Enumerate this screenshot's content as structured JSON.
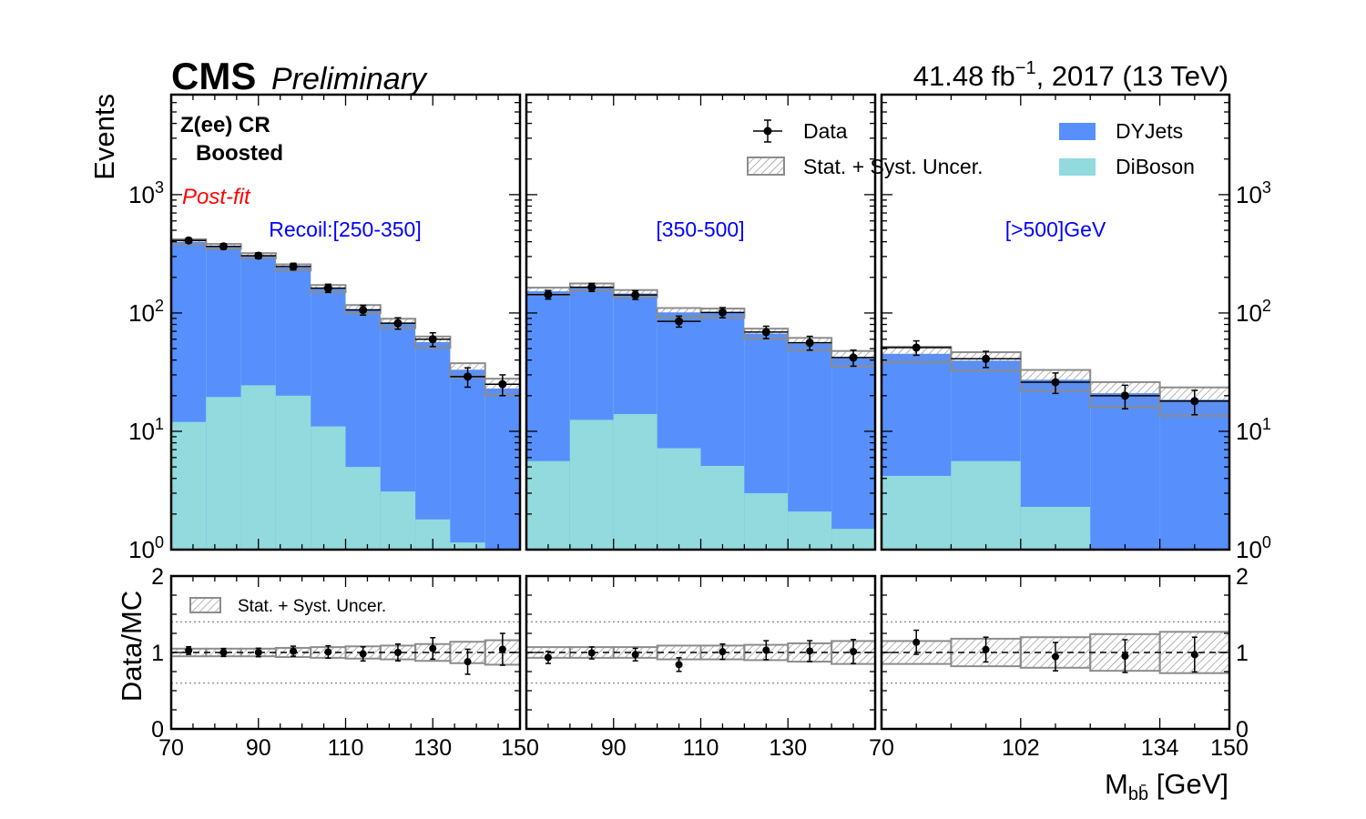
{
  "header": {
    "experiment": "CMS",
    "status": "Preliminary",
    "lumi_main": "41.48 fb",
    "lumi_exp": "−1",
    "lumi_rest": ", 2017 (13 TeV)"
  },
  "region": {
    "line1": "Z(ee) CR",
    "line2": "Boosted",
    "fit": "Post-fit"
  },
  "bins": [
    "Recoil:[250-350]",
    "[350-500]",
    "[>500]GeV"
  ],
  "legend": {
    "data": "Data",
    "uncertainty": "Stat. + Syst. Uncer.",
    "dyjets": "DYJets",
    "diboson": "DiBoson",
    "ratio_uncertainty": "Stat. + Syst. Uncer."
  },
  "axes": {
    "ylabel_top": "Events",
    "ylabel_ratio": "Data/MC",
    "xlabel_main": "M",
    "xlabel_sub": "bb̄",
    "xlabel_unit": " [GeV]"
  },
  "colors": {
    "dyjets": "#5790fc",
    "diboson": "#92dadd",
    "uncertainty_edge": "#8c8c8c",
    "data": "#000000",
    "bin_label": "#0000ff",
    "postfit": "#ff0000"
  },
  "chart_data": {
    "type": "bar",
    "stacked": true,
    "y_scale": "log",
    "ylim": [
      1,
      7000
    ],
    "ratio_ylim": [
      0,
      2
    ],
    "y_ticks": [
      "10^0",
      "10^1",
      "10^2",
      "10^3"
    ],
    "ratio_ticks": [
      "0",
      "1",
      "2"
    ],
    "panels": [
      {
        "label": "Recoil:[250-350]",
        "xlim": [
          70,
          150
        ],
        "x_tick_labels": [
          "70",
          "90",
          "110",
          "130",
          "150"
        ],
        "edges": [
          70,
          78,
          86,
          94,
          102,
          110,
          118,
          126,
          134,
          142,
          150
        ],
        "dyjets": [
          388,
          345,
          281,
          223,
          150,
          103,
          79,
          55,
          32,
          23
        ],
        "diboson": [
          12,
          19.5,
          24.5,
          20,
          11,
          5,
          3.1,
          1.8,
          1.15,
          0
        ],
        "mc_total": [
          400,
          365,
          305,
          243,
          161,
          108,
          82,
          57,
          33,
          24
        ],
        "mc_unc": [
          0.05,
          0.05,
          0.05,
          0.06,
          0.07,
          0.08,
          0.09,
          0.11,
          0.14,
          0.16
        ],
        "data": [
          410,
          365,
          305,
          247,
          162,
          106,
          82,
          60,
          29,
          25
        ],
        "data_err": [
          20,
          19,
          17,
          16,
          13,
          10,
          9,
          8,
          5.4,
          5
        ]
      },
      {
        "label": "[350-500]",
        "xlim": [
          70,
          150
        ],
        "x_tick_labels": [
          "90",
          "110",
          "130"
        ],
        "edges": [
          70,
          80,
          90,
          100,
          110,
          120,
          130,
          140,
          150
        ],
        "dyjets": [
          147,
          153,
          132,
          94,
          95,
          64,
          53,
          40
        ],
        "diboson": [
          5.6,
          12.5,
          14,
          7.2,
          5.1,
          3,
          2.1,
          1.5
        ],
        "mc_total": [
          153,
          166,
          146,
          101,
          100,
          67,
          55,
          41.5
        ],
        "mc_unc": [
          0.07,
          0.07,
          0.07,
          0.09,
          0.09,
          0.1,
          0.12,
          0.15
        ],
        "data": [
          143,
          165,
          142,
          85,
          101,
          69,
          56,
          42
        ],
        "data_err": [
          12,
          13,
          12,
          9,
          10,
          8.3,
          7.5,
          6.5
        ]
      },
      {
        "label": "[>500]GeV",
        "xlim": [
          70,
          150
        ],
        "x_tick_labels": [
          "70",
          "102",
          "134",
          "150"
        ],
        "edges": [
          70,
          86,
          102,
          118,
          134,
          150
        ],
        "dyjets": [
          41,
          34,
          25,
          21,
          18.5
        ],
        "diboson": [
          4.2,
          5.6,
          2.3,
          0,
          0
        ],
        "mc_total": [
          45,
          39.5,
          27.5,
          21,
          18.5
        ],
        "mc_unc": [
          0.15,
          0.18,
          0.2,
          0.24,
          0.27
        ],
        "data": [
          51,
          41,
          26,
          20,
          18
        ],
        "data_err": [
          7.1,
          6.4,
          5.1,
          4.5,
          4.2
        ]
      }
    ]
  }
}
